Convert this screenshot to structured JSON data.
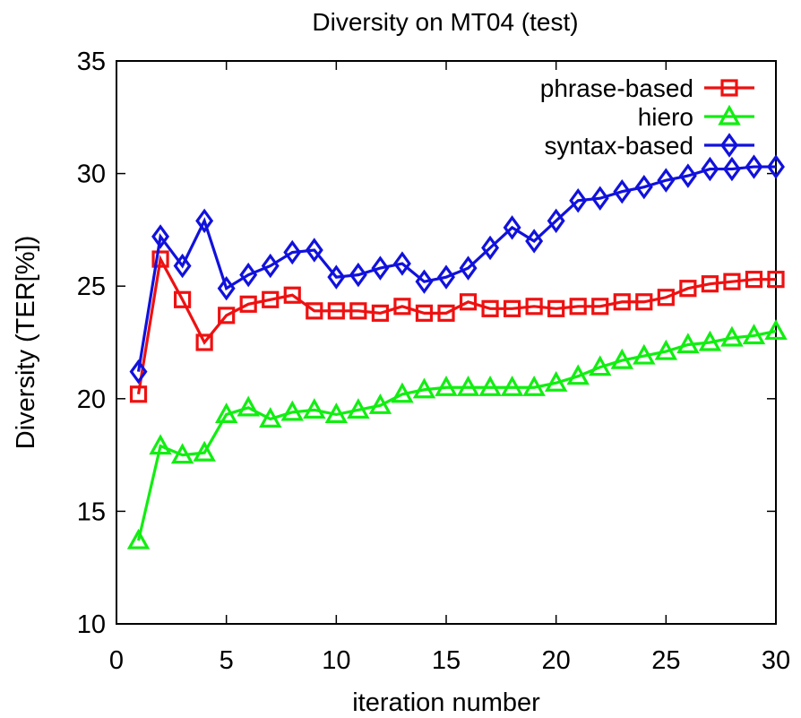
{
  "chart_data": {
    "type": "line",
    "title": "Diversity on MT04 (test)",
    "xlabel": "iteration number",
    "ylabel": "Diversity (TER[%])",
    "xlim": [
      0,
      30
    ],
    "ylim": [
      10,
      35
    ],
    "xticks": [
      0,
      5,
      10,
      15,
      20,
      25,
      30
    ],
    "yticks": [
      10,
      15,
      20,
      25,
      30,
      35
    ],
    "grid": false,
    "legend_position": "top-right",
    "x": [
      1,
      2,
      3,
      4,
      5,
      6,
      7,
      8,
      9,
      10,
      11,
      12,
      13,
      14,
      15,
      16,
      17,
      18,
      19,
      20,
      21,
      22,
      23,
      24,
      25,
      26,
      27,
      28,
      29,
      30
    ],
    "series": [
      {
        "name": "phrase-based",
        "color": "#ee1111",
        "marker": "square",
        "values": [
          20.2,
          26.2,
          24.4,
          22.5,
          23.7,
          24.2,
          24.4,
          24.6,
          23.9,
          23.9,
          23.9,
          23.8,
          24.1,
          23.8,
          23.8,
          24.3,
          24.0,
          24.0,
          24.1,
          24.0,
          24.1,
          24.1,
          24.3,
          24.3,
          24.5,
          24.9,
          25.1,
          25.2,
          25.3,
          25.3
        ]
      },
      {
        "name": "hiero",
        "color": "#11ee11",
        "marker": "triangle",
        "values": [
          13.7,
          17.9,
          17.5,
          17.6,
          19.3,
          19.6,
          19.1,
          19.4,
          19.5,
          19.3,
          19.5,
          19.7,
          20.2,
          20.4,
          20.5,
          20.5,
          20.5,
          20.5,
          20.5,
          20.7,
          21.0,
          21.4,
          21.7,
          21.9,
          22.1,
          22.4,
          22.5,
          22.7,
          22.8,
          23.0
        ]
      },
      {
        "name": "syntax-based",
        "color": "#1111dd",
        "marker": "diamond",
        "values": [
          21.2,
          27.2,
          25.9,
          27.9,
          24.9,
          25.5,
          25.9,
          26.5,
          26.6,
          25.4,
          25.5,
          25.8,
          26.0,
          25.2,
          25.4,
          25.8,
          26.7,
          27.6,
          27.0,
          27.9,
          28.8,
          28.9,
          29.2,
          29.4,
          29.7,
          29.9,
          30.2,
          30.2,
          30.3,
          30.3
        ]
      }
    ]
  }
}
